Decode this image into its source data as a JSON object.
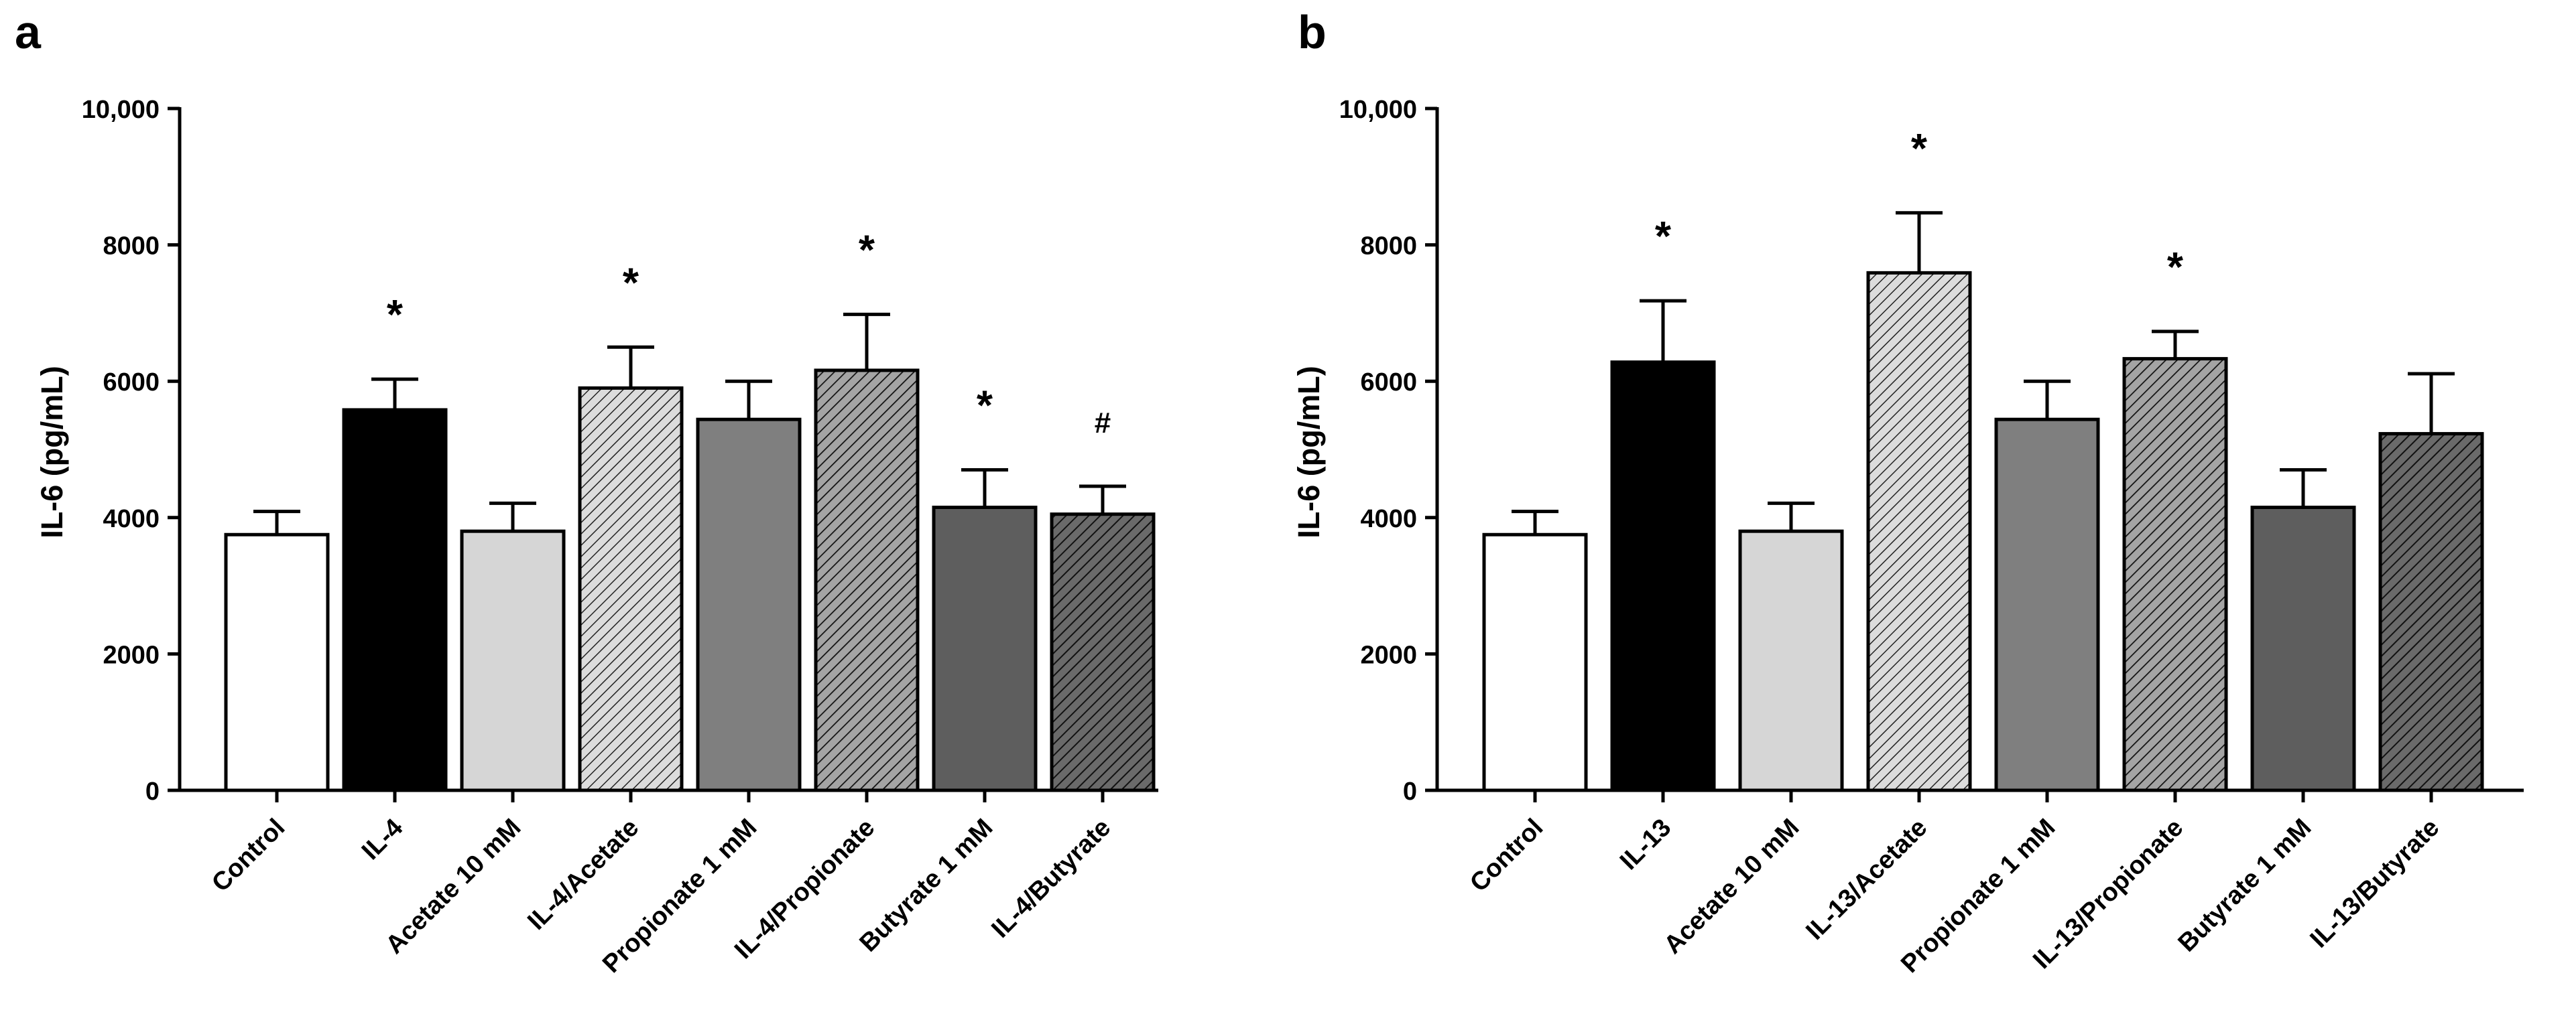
{
  "chart_data": [
    {
      "panel_label": "a",
      "type": "bar",
      "title": "",
      "xlabel": "",
      "ylabel": "IL-6 (pg/mL)",
      "ylim": [
        0,
        10000
      ],
      "yticks": [
        0,
        2000,
        4000,
        6000,
        8000,
        10000
      ],
      "ytick_labels": [
        "0",
        "2000",
        "4000",
        "6000",
        "8000",
        "10,000"
      ],
      "grid": false,
      "categories": [
        "Control",
        "IL-4",
        "Acetate 10 mM",
        "IL-4/Acetate",
        "Propionate 1 mM",
        "IL-4/Propionate",
        "Butyrate 1 mM",
        "IL-4/Butyrate"
      ],
      "values": [
        3750,
        5580,
        3800,
        5900,
        5440,
        6160,
        4150,
        4050
      ],
      "errors": [
        340,
        450,
        410,
        600,
        560,
        820,
        550,
        410
      ],
      "significance": [
        "",
        "*",
        "",
        "*",
        "",
        "*",
        "*",
        "#"
      ],
      "fills": [
        "white",
        "black",
        "light",
        "light-hatch",
        "medium",
        "medium-hatch",
        "dark",
        "dark-hatch"
      ]
    },
    {
      "panel_label": "b",
      "type": "bar",
      "title": "",
      "xlabel": "",
      "ylabel": "IL-6 (pg/mL)",
      "ylim": [
        0,
        10000
      ],
      "yticks": [
        0,
        2000,
        4000,
        6000,
        8000,
        10000
      ],
      "ytick_labels": [
        "0",
        "2000",
        "4000",
        "6000",
        "8000",
        "10,000"
      ],
      "grid": false,
      "categories": [
        "Control",
        "IL-13",
        "Acetate 10 mM",
        "IL-13/Acetate",
        "Propionate 1 mM",
        "IL-13/Propionate",
        "Butyrate 1 mM",
        "IL-13/Butyrate"
      ],
      "values": [
        3750,
        6280,
        3800,
        7590,
        5440,
        6330,
        4150,
        5230
      ],
      "errors": [
        340,
        900,
        410,
        880,
        560,
        400,
        550,
        880
      ],
      "significance": [
        "",
        "*",
        "",
        "*",
        "",
        "*",
        "",
        ""
      ],
      "fills": [
        "white",
        "black",
        "light",
        "light-hatch",
        "medium",
        "medium-hatch",
        "dark",
        "dark-hatch"
      ]
    }
  ]
}
